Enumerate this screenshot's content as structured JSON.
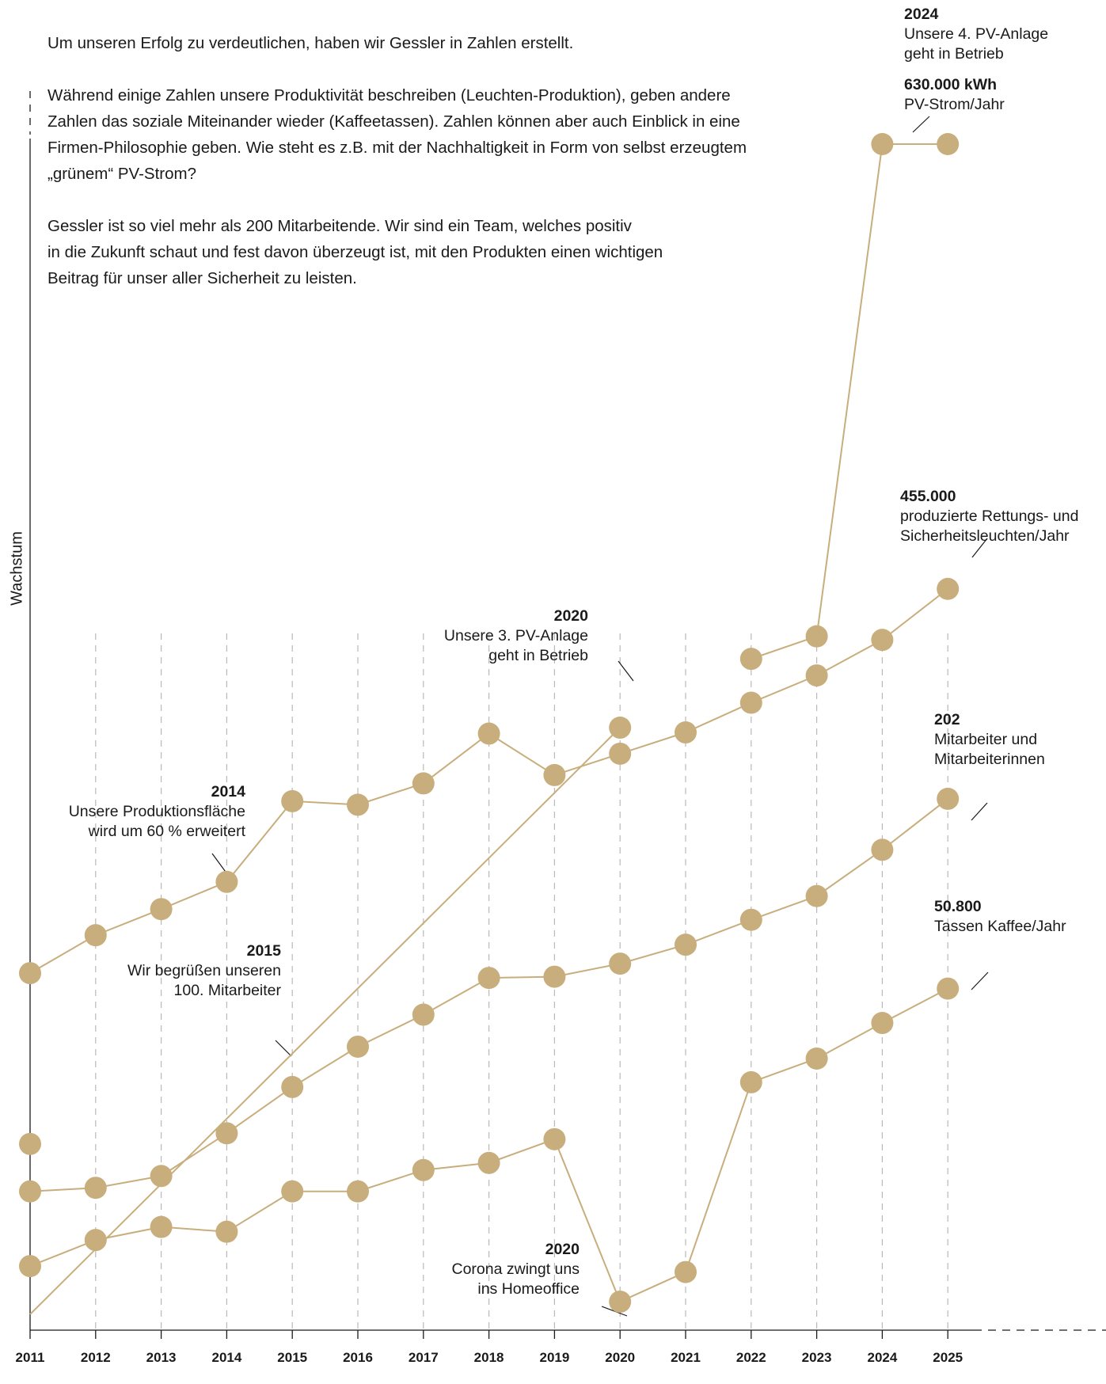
{
  "intro": {
    "p1": "Um unseren Erfolg zu verdeutlichen, haben wir Gessler in Zahlen erstellt.",
    "p2_lines": [
      "Während einige Zahlen unsere Produktivität beschreiben (Leuchten-Produktion), geben andere",
      "Zahlen das soziale Miteinander wieder (Kaffeetassen). Zahlen können aber auch Einblick in eine",
      "Firmen-Philosophie geben. Wie steht es z.B. mit der Nachhaltigkeit in Form von selbst erzeugtem",
      "„grünem“ PV-Strom?"
    ],
    "p3_lines": [
      "Gessler ist so viel mehr als 200 Mitarbeitende. Wir sind ein Team, welches positiv",
      "in die Zukunft schaut und fest davon überzeugt ist, mit den Produkten einen wichtigen",
      "Beitrag für unser aller Sicherheit zu leisten."
    ]
  },
  "colors": {
    "accent": "#c8ae7c",
    "line": "#c8ae7c",
    "axis": "#1a1a1a",
    "grid": "#b9b9b9"
  },
  "chart_data": {
    "type": "line",
    "ylabel": "Wachstum",
    "xlabel": "",
    "grid": "vertical dashed",
    "legend": "none",
    "x": [
      2011,
      2012,
      2013,
      2014,
      2015,
      2016,
      2017,
      2018,
      2019,
      2020,
      2021,
      2022,
      2023,
      2024,
      2025
    ],
    "ylim": [
      0,
      100
    ],
    "series": [
      {
        "values": [
          null,
          null,
          null,
          null,
          null,
          null,
          null,
          null,
          null,
          50.8,
          null,
          56.6,
          58.5,
          100,
          100
        ]
      },
      {
        "values": [
          30.1,
          33.3,
          35.5,
          37.8,
          44.6,
          44.3,
          46.1,
          50.3,
          46.8,
          48.6,
          50.4,
          52.9,
          55.2,
          58.2,
          62.5
        ]
      },
      {
        "values": [
          15.7,
          null,
          null,
          null,
          null,
          null,
          null,
          null,
          null,
          null,
          null,
          null,
          null,
          null,
          null
        ]
      },
      {
        "values": [
          11.7,
          12.0,
          13.0,
          16.6,
          20.5,
          23.9,
          26.6,
          29.7,
          29.8,
          30.9,
          32.5,
          34.6,
          36.6,
          40.5,
          44.8
        ]
      },
      {
        "values": [
          5.4,
          7.6,
          8.7,
          8.3,
          11.7,
          11.7,
          13.5,
          14.1,
          16.1,
          2.4,
          4.9,
          20.9,
          22.9,
          25.9,
          28.8
        ]
      }
    ],
    "annotations": [
      {
        "year": "2014",
        "lines": [
          "Unsere Produktionsfläche",
          "wird um 60 % erweitert"
        ]
      },
      {
        "year": "2015",
        "lines": [
          "Wir begrüßen unseren",
          "100. Mitarbeiter"
        ]
      },
      {
        "year": "2020",
        "lines": [
          "Unsere 3. PV-Anlage",
          "geht in Betrieb"
        ]
      },
      {
        "year": "2020",
        "lines": [
          "Corona zwingt uns",
          "ins Homeoffice"
        ]
      },
      {
        "year": "2024",
        "lines": [
          "Unsere 4. PV-Anlage",
          "geht in Betrieb"
        ]
      },
      {
        "year": "630.000 kWh",
        "lines": [
          "PV-Strom/Jahr"
        ]
      },
      {
        "year": "455.000",
        "lines": [
          "produzierte Rettungs- und",
          "Sicherheitsleuchten/Jahr"
        ]
      },
      {
        "year": "202",
        "lines": [
          "Mitarbeiter und",
          "Mitarbeiterinnen"
        ]
      },
      {
        "year": "50.800",
        "lines": [
          "Tassen Kaffee/Jahr"
        ]
      }
    ]
  }
}
